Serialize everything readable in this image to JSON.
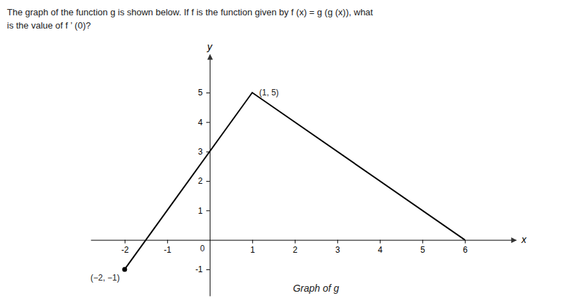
{
  "chart_data": {
    "type": "line",
    "title": "The graph of the function g  is shown below. If f  is the function given by f (x) = g (g (x)), what",
    "subtitle": "is the value of f ’ (0)?",
    "x_label": "x",
    "y_label": "y",
    "x": [
      -2,
      1,
      6
    ],
    "values": [
      -1,
      5,
      0
    ],
    "color": "#000000",
    "xlim": [
      -2.8,
      7.2
    ],
    "ylim": [
      -1.9,
      6.3
    ],
    "xticks": [
      -2,
      -1,
      1,
      2,
      3,
      4,
      5,
      6
    ],
    "yticks": [
      -1,
      1,
      2,
      3,
      4,
      5
    ],
    "grid": false,
    "annotations": [
      {
        "text": "0",
        "x": 0,
        "y": 0
      },
      {
        "text": "(−2, −1)",
        "x": -2,
        "y": -1,
        "marker": "circle"
      },
      {
        "text": "(1, 5)",
        "x": 1,
        "y": 5
      },
      {
        "text": "Graph of g",
        "x": 2.5,
        "y": -1.85
      }
    ]
  }
}
